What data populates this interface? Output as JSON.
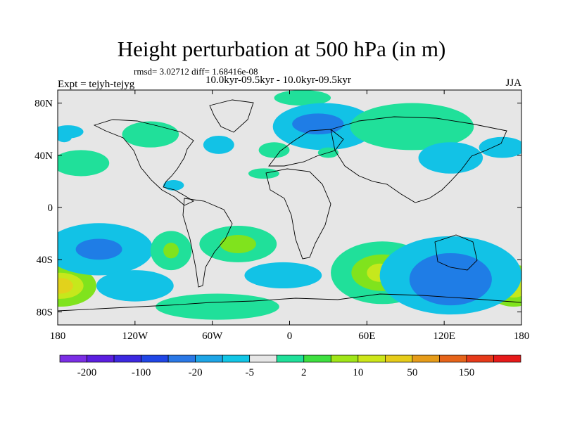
{
  "figure": {
    "title": "Height perturbation at 500 hPa (in m)",
    "stats": "rmsd= 3.02712 diff= 1.68416e-08",
    "experiment": "Expt = tejyh-tejyg",
    "period": "10.0kyr-09.5kyr - 10.0kyr-09.5kyr",
    "season": "JJA"
  },
  "map": {
    "projection": "cylindrical equidistant",
    "lon_range": [
      -180,
      180
    ],
    "lat_range": [
      -90,
      90
    ],
    "x_ticks": [
      {
        "lon": -180,
        "label": "180"
      },
      {
        "lon": -120,
        "label": "120W"
      },
      {
        "lon": -60,
        "label": "60W"
      },
      {
        "lon": 0,
        "label": "0"
      },
      {
        "lon": 60,
        "label": "60E"
      },
      {
        "lon": 120,
        "label": "120E"
      },
      {
        "lon": 180,
        "label": "180"
      }
    ],
    "y_ticks": [
      {
        "lat": 80,
        "label": "80N"
      },
      {
        "lat": 40,
        "label": "40N"
      },
      {
        "lat": 0,
        "label": "0"
      },
      {
        "lat": -40,
        "label": "40S"
      },
      {
        "lat": -80,
        "label": "80S"
      }
    ],
    "fields": [
      {
        "lon": -178,
        "lat": -60,
        "rx": 28,
        "ry": 16,
        "level": 3
      },
      {
        "lon": -178,
        "lat": -60,
        "rx": 18,
        "ry": 10,
        "level": 4
      },
      {
        "lon": -178,
        "lat": -60,
        "rx": 10,
        "ry": 6,
        "level": 5
      },
      {
        "lon": 174,
        "lat": -60,
        "rx": 22,
        "ry": 16,
        "level": 3
      },
      {
        "lon": 174,
        "lat": -60,
        "rx": 12,
        "ry": 9,
        "level": 4
      },
      {
        "lon": -148,
        "lat": -32,
        "rx": 42,
        "ry": 20,
        "level": -2
      },
      {
        "lon": -148,
        "lat": -32,
        "rx": 18,
        "ry": 8,
        "level": -3
      },
      {
        "lon": -120,
        "lat": -60,
        "rx": 30,
        "ry": 12,
        "level": -2
      },
      {
        "lon": -92,
        "lat": -33,
        "rx": 16,
        "ry": 15,
        "level": 2
      },
      {
        "lon": -92,
        "lat": -33,
        "rx": 6,
        "ry": 6,
        "level": 3
      },
      {
        "lon": -56,
        "lat": -76,
        "rx": 48,
        "ry": 10,
        "level": 2
      },
      {
        "lon": -40,
        "lat": -28,
        "rx": 30,
        "ry": 14,
        "level": 2
      },
      {
        "lon": -40,
        "lat": -28,
        "rx": 14,
        "ry": 7,
        "level": 3
      },
      {
        "lon": -5,
        "lat": -52,
        "rx": 30,
        "ry": 10,
        "level": -2
      },
      {
        "lon": 72,
        "lat": -50,
        "rx": 40,
        "ry": 24,
        "level": 2
      },
      {
        "lon": 72,
        "lat": -50,
        "rx": 24,
        "ry": 14,
        "level": 3
      },
      {
        "lon": 70,
        "lat": -50,
        "rx": 10,
        "ry": 7,
        "level": 4
      },
      {
        "lon": 125,
        "lat": -52,
        "rx": 55,
        "ry": 30,
        "level": -2
      },
      {
        "lon": 125,
        "lat": -55,
        "rx": 32,
        "ry": 20,
        "level": -3
      },
      {
        "lon": -162,
        "lat": 34,
        "rx": 22,
        "ry": 10,
        "level": 2
      },
      {
        "lon": -108,
        "lat": 56,
        "rx": 22,
        "ry": 10,
        "level": 2
      },
      {
        "lon": -55,
        "lat": 48,
        "rx": 12,
        "ry": 7,
        "level": -2
      },
      {
        "lon": -172,
        "lat": 58,
        "rx": 12,
        "ry": 5,
        "level": -2
      },
      {
        "lon": -20,
        "lat": 26,
        "rx": 12,
        "ry": 4,
        "level": 2
      },
      {
        "lon": -90,
        "lat": 17,
        "rx": 8,
        "ry": 4,
        "level": -2
      },
      {
        "lon": 10,
        "lat": 84,
        "rx": 22,
        "ry": 6,
        "level": 2
      },
      {
        "lon": 27,
        "lat": 62,
        "rx": 40,
        "ry": 18,
        "level": -2
      },
      {
        "lon": 22,
        "lat": 64,
        "rx": 20,
        "ry": 8,
        "level": -3
      },
      {
        "lon": -12,
        "lat": 44,
        "rx": 12,
        "ry": 6,
        "level": 2
      },
      {
        "lon": 30,
        "lat": 42,
        "rx": 8,
        "ry": 4,
        "level": 2
      },
      {
        "lon": 95,
        "lat": 62,
        "rx": 48,
        "ry": 18,
        "level": 2
      },
      {
        "lon": 125,
        "lat": 38,
        "rx": 25,
        "ry": 12,
        "level": -2
      },
      {
        "lon": 165,
        "lat": 46,
        "rx": 18,
        "ry": 8,
        "level": -2
      },
      {
        "lon": -175,
        "lat": 54,
        "rx": 6,
        "ry": 4,
        "level": -2
      }
    ]
  },
  "colorbar": {
    "colors": [
      "#7b2ee5",
      "#5b1ee0",
      "#3c28e0",
      "#2046e6",
      "#2a78e6",
      "#1ea5e6",
      "#12c6e6",
      "#e6e6e6",
      "#20e09a",
      "#3ee040",
      "#a0e618",
      "#cde61a",
      "#e6cc1a",
      "#e69c1a",
      "#e6641a",
      "#e63a1a",
      "#e61a1a"
    ],
    "labels": [
      "-200",
      "-100",
      "-20",
      "-5",
      "2",
      "10",
      "50",
      "150"
    ],
    "label_boundaries": [
      1,
      3,
      5,
      7,
      9,
      11,
      13,
      15
    ],
    "field_level_colors": {
      "-3": "#1f7de6",
      "-2": "#12c2e6",
      "2": "#20e09a",
      "3": "#80e31d",
      "4": "#c6e81c",
      "5": "#e2d21c"
    }
  }
}
